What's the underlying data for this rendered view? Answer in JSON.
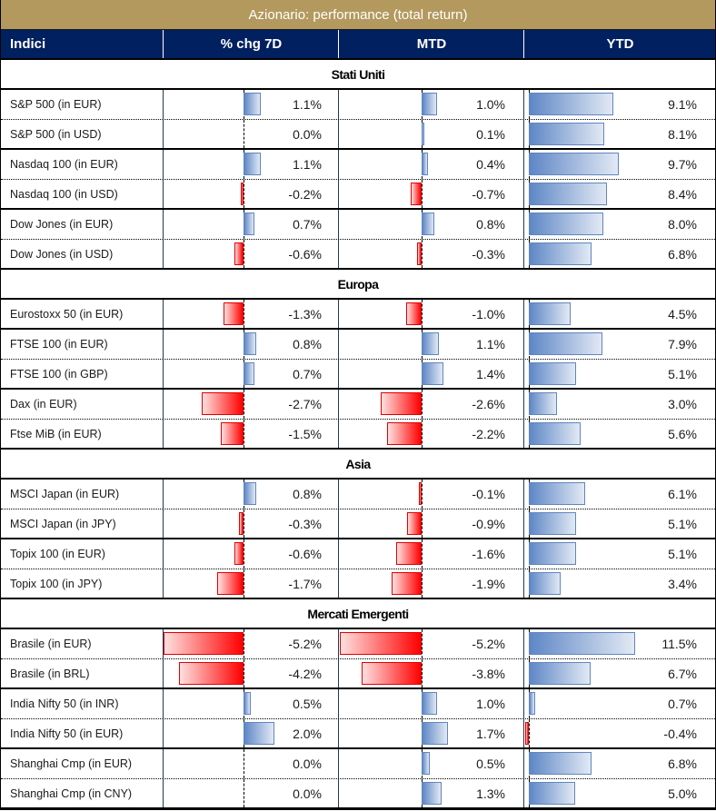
{
  "title": "Azionario: performance (total return)",
  "headers": {
    "name": "Indici",
    "chg7d": "% chg 7D",
    "mtd": "MTD",
    "ytd": "YTD"
  },
  "colors": {
    "title_bg": "#B3995E",
    "header_bg": "#002060",
    "positive": "#5E87C6",
    "negative": "#FF0000"
  },
  "sections": [
    {
      "name": "Stati Uniti",
      "rows": [
        {
          "name": "S&P 500 (in EUR)",
          "chg7d": 1.1,
          "chg7d_label": "1.1%",
          "mtd": 1.0,
          "mtd_label": "1.0%",
          "ytd": 9.1,
          "ytd_label": "9.1%"
        },
        {
          "name": "S&P 500 (in USD)",
          "chg7d": 0.0,
          "chg7d_label": "0.0%",
          "mtd": 0.1,
          "mtd_label": "0.1%",
          "ytd": 8.1,
          "ytd_label": "8.1%"
        },
        {
          "name": "Nasdaq 100 (in EUR)",
          "chg7d": 1.1,
          "chg7d_label": "1.1%",
          "mtd": 0.4,
          "mtd_label": "0.4%",
          "ytd": 9.7,
          "ytd_label": "9.7%"
        },
        {
          "name": "Nasdaq 100 (in USD)",
          "chg7d": -0.2,
          "chg7d_label": "-0.2%",
          "mtd": -0.7,
          "mtd_label": "-0.7%",
          "ytd": 8.4,
          "ytd_label": "8.4%"
        },
        {
          "name": "Dow Jones (in EUR)",
          "chg7d": 0.7,
          "chg7d_label": "0.7%",
          "mtd": 0.8,
          "mtd_label": "0.8%",
          "ytd": 8.0,
          "ytd_label": "8.0%"
        },
        {
          "name": "Dow Jones (in USD)",
          "chg7d": -0.6,
          "chg7d_label": "-0.6%",
          "mtd": -0.3,
          "mtd_label": "-0.3%",
          "ytd": 6.8,
          "ytd_label": "6.8%"
        }
      ]
    },
    {
      "name": "Europa",
      "rows": [
        {
          "name": "Eurostoxx 50 (in EUR)",
          "chg7d": -1.3,
          "chg7d_label": "-1.3%",
          "mtd": -1.0,
          "mtd_label": "-1.0%",
          "ytd": 4.5,
          "ytd_label": "4.5%"
        },
        {
          "name": "FTSE 100 (in EUR)",
          "chg7d": 0.8,
          "chg7d_label": "0.8%",
          "mtd": 1.1,
          "mtd_label": "1.1%",
          "ytd": 7.9,
          "ytd_label": "7.9%"
        },
        {
          "name": "FTSE 100 (in GBP)",
          "chg7d": 0.7,
          "chg7d_label": "0.7%",
          "mtd": 1.4,
          "mtd_label": "1.4%",
          "ytd": 5.1,
          "ytd_label": "5.1%"
        },
        {
          "name": "Dax (in EUR)",
          "chg7d": -2.7,
          "chg7d_label": "-2.7%",
          "mtd": -2.6,
          "mtd_label": "-2.6%",
          "ytd": 3.0,
          "ytd_label": "3.0%"
        },
        {
          "name": "Ftse MiB (in EUR)",
          "chg7d": -1.5,
          "chg7d_label": "-1.5%",
          "mtd": -2.2,
          "mtd_label": "-2.2%",
          "ytd": 5.6,
          "ytd_label": "5.6%"
        }
      ]
    },
    {
      "name": "Asia",
      "rows": [
        {
          "name": "MSCI Japan (in EUR)",
          "chg7d": 0.8,
          "chg7d_label": "0.8%",
          "mtd": -0.1,
          "mtd_label": "-0.1%",
          "ytd": 6.1,
          "ytd_label": "6.1%"
        },
        {
          "name": "MSCI Japan (in JPY)",
          "chg7d": -0.3,
          "chg7d_label": "-0.3%",
          "mtd": -0.9,
          "mtd_label": "-0.9%",
          "ytd": 5.1,
          "ytd_label": "5.1%"
        },
        {
          "name": "Topix 100 (in EUR)",
          "chg7d": -0.6,
          "chg7d_label": "-0.6%",
          "mtd": -1.6,
          "mtd_label": "-1.6%",
          "ytd": 5.1,
          "ytd_label": "5.1%"
        },
        {
          "name": "Topix 100 (in JPY)",
          "chg7d": -1.7,
          "chg7d_label": "-1.7%",
          "mtd": -1.9,
          "mtd_label": "-1.9%",
          "ytd": 3.4,
          "ytd_label": "3.4%"
        }
      ]
    },
    {
      "name": "Mercati Emergenti",
      "rows": [
        {
          "name": "Brasile (in EUR)",
          "chg7d": -5.2,
          "chg7d_label": "-5.2%",
          "mtd": -5.2,
          "mtd_label": "-5.2%",
          "ytd": 11.5,
          "ytd_label": "11.5%"
        },
        {
          "name": "Brasile (in BRL)",
          "chg7d": -4.2,
          "chg7d_label": "-4.2%",
          "mtd": -3.8,
          "mtd_label": "-3.8%",
          "ytd": 6.7,
          "ytd_label": "6.7%"
        },
        {
          "name": "India Nifty 50 (in INR)",
          "chg7d": 0.5,
          "chg7d_label": "0.5%",
          "mtd": 1.0,
          "mtd_label": "1.0%",
          "ytd": 0.7,
          "ytd_label": "0.7%"
        },
        {
          "name": "India Nifty 50 (in EUR)",
          "chg7d": 2.0,
          "chg7d_label": "2.0%",
          "mtd": 1.7,
          "mtd_label": "1.7%",
          "ytd": -0.4,
          "ytd_label": "-0.4%"
        },
        {
          "name": "Shanghai Cmp (in EUR)",
          "chg7d": 0.0,
          "chg7d_label": "0.0%",
          "mtd": 0.5,
          "mtd_label": "0.5%",
          "ytd": 6.8,
          "ytd_label": "6.8%"
        },
        {
          "name": "Shanghai Cmp (in CNY)",
          "chg7d": 0.0,
          "chg7d_label": "0.0%",
          "mtd": 1.3,
          "mtd_label": "1.3%",
          "ytd": 5.0,
          "ytd_label": "5.0%"
        }
      ]
    }
  ]
}
